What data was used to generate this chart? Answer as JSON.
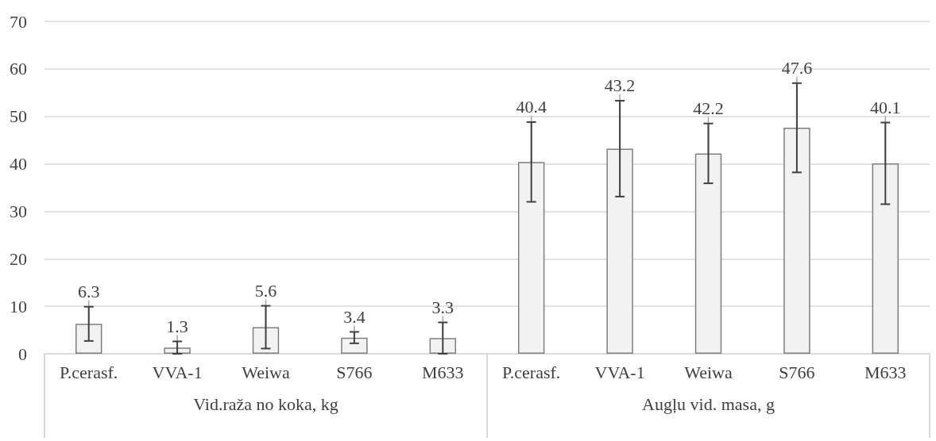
{
  "chart_data": {
    "type": "bar",
    "categories": [
      "P.cerasf.",
      "VVA-1",
      "Weiwa",
      "S766",
      "M633",
      "P.cerasf.",
      "VVA-1",
      "Weiwa",
      "S766",
      "M633"
    ],
    "values": [
      6.3,
      1.3,
      5.6,
      3.4,
      3.3,
      40.4,
      43.2,
      42.2,
      47.6,
      40.1
    ],
    "errors": [
      3.6,
      1.3,
      4.5,
      1.2,
      3.3,
      8.4,
      10.1,
      6.3,
      9.4,
      8.6
    ],
    "color": "#f2f2f2",
    "annotations": [
      "Vid.raža no koka, kg",
      "Augļu vid. masa, g"
    ],
    "ylim": [
      0,
      70
    ],
    "yticks": [
      0,
      10,
      20,
      30,
      40,
      50,
      60,
      70
    ],
    "grid": "y",
    "data_labels": true
  }
}
